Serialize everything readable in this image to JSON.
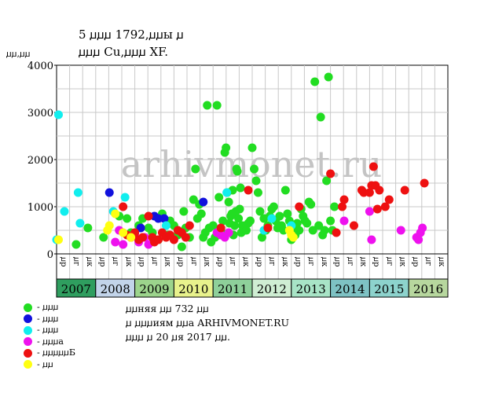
{
  "title_line1": "5 ꙡꙡꙡ 1792,ꙡꙡы ꙡ",
  "title_line2": "ꙡꙡꙡ Cu,ꙡꙡꙡ XF.",
  "watermark": "arhivmonet.ru",
  "notes": [
    "ꙡꙡняя ꙡꙡ 732 ꙡꙡ",
    "ꙡ ꙡꙡꙡиям ꙡꙡа ARHIVMONET.RU",
    "ꙡꙡꙡ ꙡ 20 ꙡя 2017 ꙡꙡ."
  ],
  "legend": [
    {
      "label": "- ꙡꙡꙡ",
      "color": "#22dd22"
    },
    {
      "label": "- ꙡꙡꙡ",
      "color": "#1111dd"
    },
    {
      "label": "- ꙡꙡꙡ",
      "color": "#11eeee"
    },
    {
      "label": "- ꙡꙡꙡа",
      "color": "#ee11ee"
    },
    {
      "label": "- ꙡꙡꙡꙡꙡБ",
      "color": "#ee1111"
    },
    {
      "label": "- ꙡꙡ",
      "color": "#ffff11"
    }
  ],
  "chart_data": {
    "type": "scatter",
    "ylabel": "ꙡꙡ,ꙡꙡ",
    "ylim": [
      0,
      4000
    ],
    "yticks": [
      0,
      1000,
      2000,
      3000,
      4000
    ],
    "grid": true,
    "xlim": [
      2007,
      2017
    ],
    "quarter_labels": [
      "ꙡр",
      "ꙡг",
      "ꙡк"
    ],
    "years": [
      {
        "label": "2007",
        "color": "#2f9e5f"
      },
      {
        "label": "2008",
        "color": "#c2d4ea"
      },
      {
        "label": "2009",
        "color": "#9cd48c"
      },
      {
        "label": "2010",
        "color": "#e8f28c"
      },
      {
        "label": "2011",
        "color": "#8ed09a"
      },
      {
        "label": "2012",
        "color": "#cfeed3"
      },
      {
        "label": "2013",
        "color": "#a8e4c6"
      },
      {
        "label": "2014",
        "color": "#7ec2c4"
      },
      {
        "label": "2015",
        "color": "#8dd3cd"
      },
      {
        "label": "2016",
        "color": "#b7d79e"
      }
    ],
    "series": [
      {
        "color": "#22dd22",
        "points": [
          [
            2007.5,
            200
          ],
          [
            2007.8,
            550
          ],
          [
            2008.2,
            350
          ],
          [
            2008.6,
            800
          ],
          [
            2008.8,
            750
          ],
          [
            2008.9,
            450
          ],
          [
            2009.1,
            600
          ],
          [
            2009.2,
            750
          ],
          [
            2009.35,
            550
          ],
          [
            2009.45,
            450
          ],
          [
            2009.6,
            300
          ],
          [
            2009.7,
            850
          ],
          [
            2009.85,
            400
          ],
          [
            2009.9,
            700
          ],
          [
            2010.0,
            600
          ],
          [
            2010.1,
            400
          ],
          [
            2010.2,
            150
          ],
          [
            2010.25,
            900
          ],
          [
            2010.3,
            550
          ],
          [
            2010.4,
            350
          ],
          [
            2010.5,
            1150
          ],
          [
            2010.55,
            1800
          ],
          [
            2010.6,
            750
          ],
          [
            2010.65,
            1050
          ],
          [
            2010.7,
            850
          ],
          [
            2010.75,
            350
          ],
          [
            2010.8,
            450
          ],
          [
            2010.85,
            3150
          ],
          [
            2010.9,
            550
          ],
          [
            2010.95,
            250
          ],
          [
            2011.0,
            600
          ],
          [
            2011.05,
            350
          ],
          [
            2011.1,
            3150
          ],
          [
            2011.15,
            1200
          ],
          [
            2011.2,
            500
          ],
          [
            2011.25,
            700
          ],
          [
            2011.3,
            2150
          ],
          [
            2011.33,
            2250
          ],
          [
            2011.36,
            1300
          ],
          [
            2011.4,
            1100
          ],
          [
            2011.42,
            650
          ],
          [
            2011.45,
            800
          ],
          [
            2011.48,
            850
          ],
          [
            2011.5,
            1350
          ],
          [
            2011.52,
            400
          ],
          [
            2011.55,
            600
          ],
          [
            2011.58,
            900
          ],
          [
            2011.6,
            1800
          ],
          [
            2011.62,
            1750
          ],
          [
            2011.65,
            750
          ],
          [
            2011.68,
            950
          ],
          [
            2011.7,
            1400
          ],
          [
            2011.72,
            450
          ],
          [
            2011.75,
            600
          ],
          [
            2011.8,
            500
          ],
          [
            2011.85,
            500
          ],
          [
            2011.9,
            650
          ],
          [
            2011.95,
            700
          ],
          [
            2012.0,
            2250
          ],
          [
            2012.05,
            1800
          ],
          [
            2012.1,
            1550
          ],
          [
            2012.15,
            1300
          ],
          [
            2012.2,
            900
          ],
          [
            2012.25,
            350
          ],
          [
            2012.3,
            750
          ],
          [
            2012.35,
            500
          ],
          [
            2012.4,
            600
          ],
          [
            2012.45,
            800
          ],
          [
            2012.5,
            950
          ],
          [
            2012.55,
            1000
          ],
          [
            2012.6,
            700
          ],
          [
            2012.65,
            550
          ],
          [
            2012.7,
            800
          ],
          [
            2012.75,
            600
          ],
          [
            2012.8,
            500
          ],
          [
            2012.85,
            1350
          ],
          [
            2012.9,
            850
          ],
          [
            2012.95,
            700
          ],
          [
            2013.0,
            300
          ],
          [
            2013.05,
            550
          ],
          [
            2013.1,
            400
          ],
          [
            2013.15,
            650
          ],
          [
            2013.2,
            500
          ],
          [
            2013.25,
            950
          ],
          [
            2013.3,
            800
          ],
          [
            2013.35,
            700
          ],
          [
            2013.4,
            650
          ],
          [
            2013.45,
            1100
          ],
          [
            2013.5,
            1050
          ],
          [
            2013.55,
            500
          ],
          [
            2013.6,
            3650
          ],
          [
            2013.7,
            600
          ],
          [
            2013.75,
            2900
          ],
          [
            2013.8,
            400
          ],
          [
            2013.85,
            500
          ],
          [
            2013.9,
            1550
          ],
          [
            2013.95,
            3750
          ],
          [
            2014.0,
            700
          ],
          [
            2014.05,
            500
          ],
          [
            2014.1,
            1000
          ]
        ]
      },
      {
        "color": "#1111dd",
        "points": [
          [
            2008.35,
            1300
          ],
          [
            2009.15,
            550
          ],
          [
            2009.5,
            800
          ],
          [
            2009.6,
            750
          ],
          [
            2009.75,
            750
          ],
          [
            2010.75,
            1100
          ]
        ]
      },
      {
        "color": "#11eeee",
        "points": [
          [
            2007.0,
            300
          ],
          [
            2007.05,
            2950
          ],
          [
            2007.2,
            900
          ],
          [
            2007.55,
            1300
          ],
          [
            2007.6,
            650
          ],
          [
            2008.45,
            900
          ],
          [
            2008.75,
            1200
          ],
          [
            2009.8,
            600
          ],
          [
            2011.35,
            1300
          ],
          [
            2012.3,
            500
          ],
          [
            2012.5,
            750
          ],
          [
            2013.0,
            600
          ]
        ]
      },
      {
        "color": "#ee11ee",
        "points": [
          [
            2008.5,
            250
          ],
          [
            2008.6,
            500
          ],
          [
            2008.7,
            200
          ],
          [
            2008.9,
            350
          ],
          [
            2009.0,
            400
          ],
          [
            2009.1,
            250
          ],
          [
            2009.25,
            350
          ],
          [
            2009.35,
            200
          ],
          [
            2009.5,
            300
          ],
          [
            2011.1,
            450
          ],
          [
            2011.2,
            400
          ],
          [
            2011.3,
            350
          ],
          [
            2011.4,
            450
          ],
          [
            2014.35,
            700
          ],
          [
            2015.0,
            900
          ],
          [
            2015.05,
            300
          ],
          [
            2015.8,
            500
          ],
          [
            2016.2,
            350
          ],
          [
            2016.25,
            300
          ],
          [
            2016.3,
            450
          ],
          [
            2016.35,
            550
          ]
        ]
      },
      {
        "color": "#ee1111",
        "points": [
          [
            2008.7,
            1000
          ],
          [
            2008.8,
            400
          ],
          [
            2008.9,
            350
          ],
          [
            2009.0,
            450
          ],
          [
            2009.1,
            300
          ],
          [
            2009.2,
            350
          ],
          [
            2009.35,
            800
          ],
          [
            2009.45,
            350
          ],
          [
            2009.5,
            250
          ],
          [
            2009.6,
            300
          ],
          [
            2009.7,
            450
          ],
          [
            2009.8,
            350
          ],
          [
            2009.9,
            400
          ],
          [
            2010.0,
            300
          ],
          [
            2010.1,
            500
          ],
          [
            2010.2,
            450
          ],
          [
            2010.3,
            350
          ],
          [
            2010.4,
            600
          ],
          [
            2011.2,
            550
          ],
          [
            2011.9,
            1350
          ],
          [
            2012.4,
            550
          ],
          [
            2013.2,
            1000
          ],
          [
            2014.0,
            1700
          ],
          [
            2014.15,
            450
          ],
          [
            2014.3,
            1000
          ],
          [
            2014.35,
            1150
          ],
          [
            2014.6,
            600
          ],
          [
            2014.8,
            1350
          ],
          [
            2014.85,
            1300
          ],
          [
            2015.0,
            1300
          ],
          [
            2015.05,
            1450
          ],
          [
            2015.1,
            1850
          ],
          [
            2015.15,
            1450
          ],
          [
            2015.2,
            950
          ],
          [
            2015.25,
            1350
          ],
          [
            2015.4,
            1000
          ],
          [
            2015.5,
            1150
          ],
          [
            2015.9,
            1350
          ],
          [
            2016.4,
            1500
          ]
        ]
      },
      {
        "color": "#ffff11",
        "points": [
          [
            2007.05,
            300
          ],
          [
            2008.3,
            500
          ],
          [
            2008.35,
            600
          ],
          [
            2008.5,
            850
          ],
          [
            2008.7,
            450
          ],
          [
            2008.9,
            350
          ],
          [
            2012.95,
            500
          ],
          [
            2013.0,
            400
          ],
          [
            2013.05,
            350
          ]
        ]
      }
    ]
  }
}
